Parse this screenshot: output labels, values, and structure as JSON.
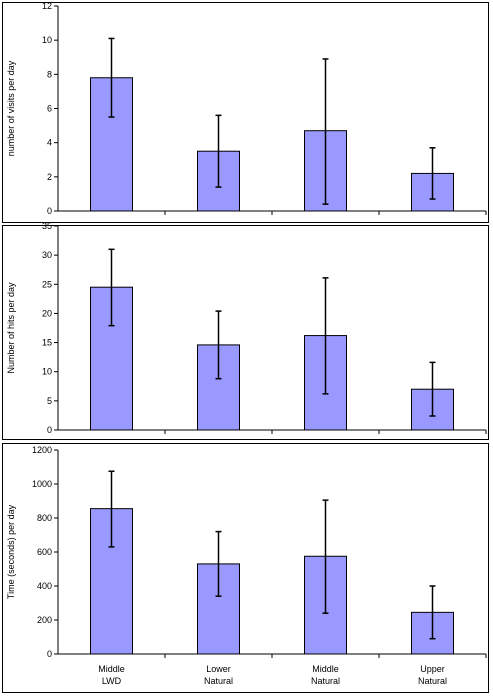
{
  "colors": {
    "bar_fill": "#9999ff",
    "bar_stroke": "#000000",
    "axis": "#000000",
    "background": "#ffffff"
  },
  "chart_data": [
    {
      "type": "bar",
      "categories": [
        [
          "Middle",
          "LWD"
        ],
        [
          "Lower",
          "Natural"
        ],
        [
          "Middle",
          "Natural"
        ],
        [
          "Upper",
          "Natural"
        ]
      ],
      "values": [
        7.8,
        3.5,
        4.7,
        2.2
      ],
      "error_low": [
        5.5,
        1.4,
        0.4,
        0.7
      ],
      "error_high": [
        10.1,
        5.6,
        8.9,
        3.7
      ],
      "ylabel": "number of visits per day",
      "ylim": [
        0,
        12
      ],
      "yticks": [
        0,
        2,
        4,
        6,
        8,
        10,
        12
      ],
      "show_categories": false
    },
    {
      "type": "bar",
      "categories": [
        [
          "Middle",
          "LWD"
        ],
        [
          "Lower",
          "Natural"
        ],
        [
          "Middle",
          "Natural"
        ],
        [
          "Upper",
          "Natural"
        ]
      ],
      "values": [
        24.5,
        14.6,
        16.2,
        7.0
      ],
      "error_low": [
        17.9,
        8.8,
        6.2,
        2.4
      ],
      "error_high": [
        31.0,
        20.4,
        26.1,
        11.6
      ],
      "ylabel": "Number of hits per day",
      "ylim": [
        0,
        35
      ],
      "yticks": [
        0,
        5,
        10,
        15,
        20,
        25,
        30,
        35
      ],
      "show_categories": false
    },
    {
      "type": "bar",
      "categories": [
        [
          "Middle",
          "LWD"
        ],
        [
          "Lower",
          "Natural"
        ],
        [
          "Middle",
          "Natural"
        ],
        [
          "Upper",
          "Natural"
        ]
      ],
      "values": [
        855,
        530,
        575,
        245
      ],
      "error_low": [
        630,
        340,
        240,
        90
      ],
      "error_high": [
        1075,
        720,
        905,
        400
      ],
      "ylabel": "Time (seconds) per day",
      "ylim": [
        0,
        1200
      ],
      "yticks": [
        0,
        200,
        400,
        600,
        800,
        1000,
        1200
      ],
      "show_categories": true
    }
  ]
}
